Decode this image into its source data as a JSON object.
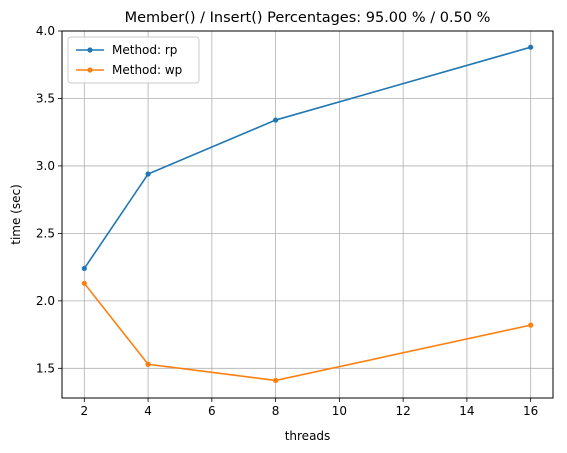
{
  "chart_data": {
    "type": "line",
    "title": "Member() / Insert() Percentages: 95.00 % / 0.50 %",
    "xlabel": "threads",
    "ylabel": "time (sec)",
    "xlim": [
      1.3,
      16.7
    ],
    "ylim": [
      1.28,
      4.0
    ],
    "xticks": [
      2,
      4,
      6,
      8,
      10,
      12,
      14,
      16
    ],
    "xtick_labels": [
      "2",
      "4",
      "6",
      "8",
      "10",
      "12",
      "14",
      "16"
    ],
    "yticks": [
      1.5,
      2.0,
      2.5,
      3.0,
      3.5,
      4.0
    ],
    "ytick_labels": [
      "1.5",
      "2.0",
      "2.5",
      "3.0",
      "3.5",
      "4.0"
    ],
    "grid": true,
    "legend_position": "top-left",
    "series": [
      {
        "name": "Method: rp",
        "color": "#1f77b4",
        "x": [
          2,
          4,
          8,
          16
        ],
        "y": [
          2.24,
          2.94,
          3.34,
          3.88
        ]
      },
      {
        "name": "Method: wp",
        "color": "#ff7f0e",
        "x": [
          2,
          4,
          8,
          16
        ],
        "y": [
          2.13,
          1.53,
          1.41,
          1.82
        ]
      }
    ]
  }
}
